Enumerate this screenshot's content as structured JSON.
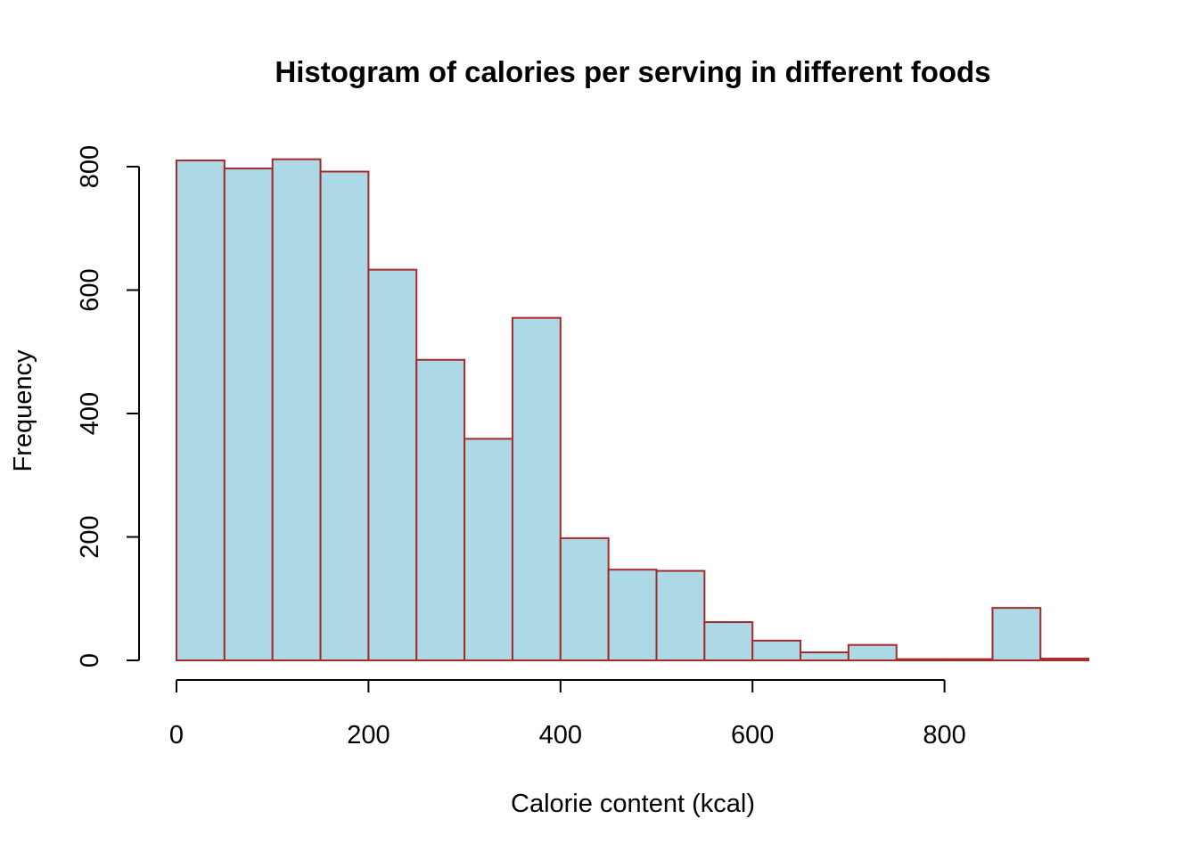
{
  "chart_data": {
    "type": "bar",
    "title": "Histogram of calories per serving in different foods",
    "xlabel": "Calorie content (kcal)",
    "ylabel": "Frequency",
    "bins": [
      [
        0,
        50
      ],
      [
        50,
        100
      ],
      [
        100,
        150
      ],
      [
        150,
        200
      ],
      [
        200,
        250
      ],
      [
        250,
        300
      ],
      [
        300,
        350
      ],
      [
        350,
        400
      ],
      [
        400,
        450
      ],
      [
        450,
        500
      ],
      [
        500,
        550
      ],
      [
        550,
        600
      ],
      [
        600,
        650
      ],
      [
        650,
        700
      ],
      [
        700,
        750
      ],
      [
        750,
        800
      ],
      [
        800,
        850
      ],
      [
        850,
        900
      ],
      [
        900,
        950
      ]
    ],
    "values": [
      810,
      797,
      812,
      792,
      633,
      487,
      359,
      555,
      198,
      147,
      145,
      62,
      32,
      13,
      25,
      2,
      2,
      85,
      3
    ],
    "xlim": [
      0,
      950
    ],
    "ylim": [
      0,
      800
    ],
    "xticks": [
      0,
      200,
      400,
      600,
      800
    ],
    "yticks": [
      0,
      200,
      400,
      600,
      800
    ],
    "grid": false,
    "colors": {
      "bar_fill": "#add8e6",
      "bar_border": "#a52a2a"
    }
  }
}
